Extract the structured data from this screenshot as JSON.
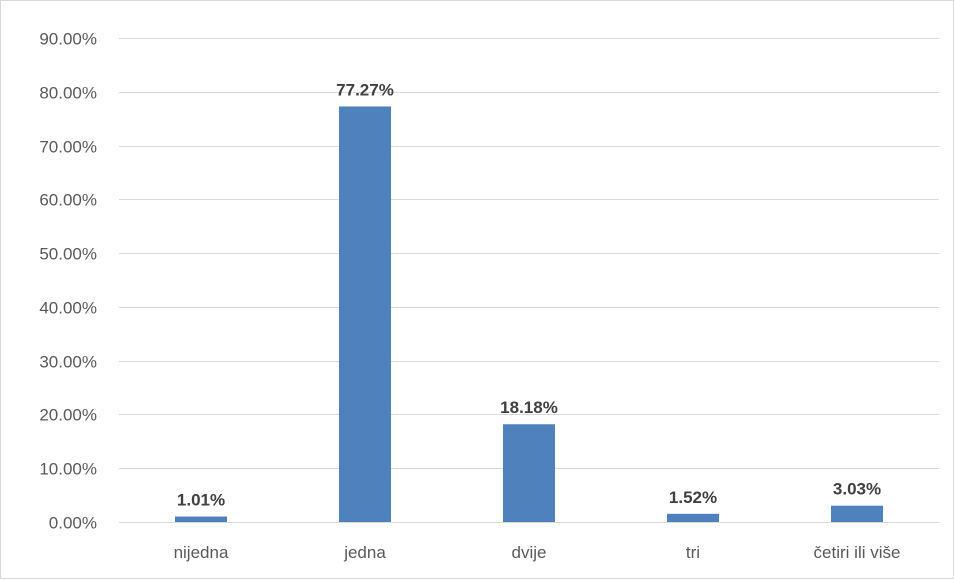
{
  "chart_data": {
    "type": "bar",
    "categories": [
      "nijedna",
      "jedna",
      "dvije",
      "tri",
      "četiri ili više"
    ],
    "values": [
      1.01,
      77.27,
      18.18,
      1.52,
      3.03
    ],
    "value_labels": [
      "1.01%",
      "77.27%",
      "18.18%",
      "1.52%",
      "3.03%"
    ],
    "ylim": [
      0,
      90
    ],
    "yticks": [
      0,
      10,
      20,
      30,
      40,
      50,
      60,
      70,
      80,
      90
    ],
    "ytick_labels": [
      "0.00%",
      "10.00%",
      "20.00%",
      "30.00%",
      "40.00%",
      "50.00%",
      "60.00%",
      "70.00%",
      "80.00%",
      "90.00%"
    ],
    "title": "",
    "xlabel": "",
    "ylabel": "",
    "grid": true,
    "legend": "none",
    "bar_color": "#4f81bd",
    "grid_color": "#d9d9d9"
  }
}
